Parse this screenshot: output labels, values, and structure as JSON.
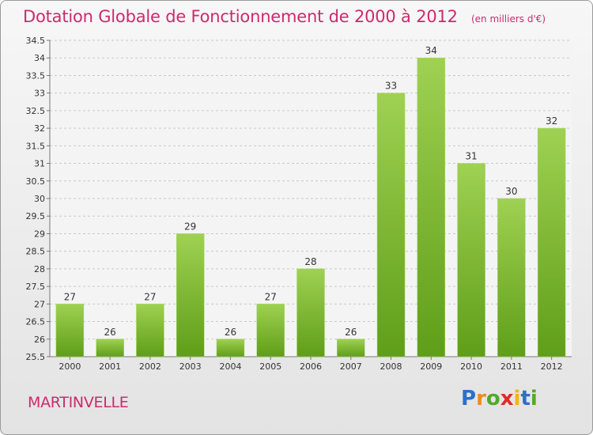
{
  "title": "Dotation Globale de Fonctionnement de 2000 à 2012",
  "unit_note": "(en milliers d'€)",
  "town": "MARTINVELLE",
  "logo": {
    "letters": [
      "P",
      "r",
      "o",
      "x",
      "i",
      "t",
      "i"
    ],
    "colors": [
      "#2e6fc7",
      "#f08a1c",
      "#54a82b",
      "#e02a2a",
      "#f2b417",
      "#2e6fc7",
      "#54a82b"
    ]
  },
  "colors": {
    "bar_light": "#9fd152",
    "bar_dark": "#5f9e18",
    "grid": "#c9c9c9",
    "axis_text": "#333333",
    "brand": "#cc2a6e"
  },
  "chart_data": {
    "type": "bar",
    "categories": [
      "2000",
      "2001",
      "2002",
      "2003",
      "2004",
      "2005",
      "2006",
      "2007",
      "2008",
      "2009",
      "2010",
      "2011",
      "2012"
    ],
    "values": [
      27,
      26,
      27,
      29,
      26,
      27,
      28,
      26,
      33,
      34,
      31,
      30,
      32
    ],
    "data_labels": [
      "27",
      "26",
      "27",
      "29",
      "26",
      "27",
      "28",
      "26",
      "33",
      "34",
      "31",
      "30",
      "32"
    ],
    "yticks": [
      "25.5",
      "26",
      "26.5",
      "27",
      "27.5",
      "28",
      "28.5",
      "29",
      "29.5",
      "30",
      "30.5",
      "31",
      "31.5",
      "32",
      "32.5",
      "33",
      "33.5",
      "34",
      "34.5"
    ],
    "ylim": [
      25.5,
      34.5
    ],
    "grid": true,
    "xlabel": "",
    "ylabel": ""
  }
}
